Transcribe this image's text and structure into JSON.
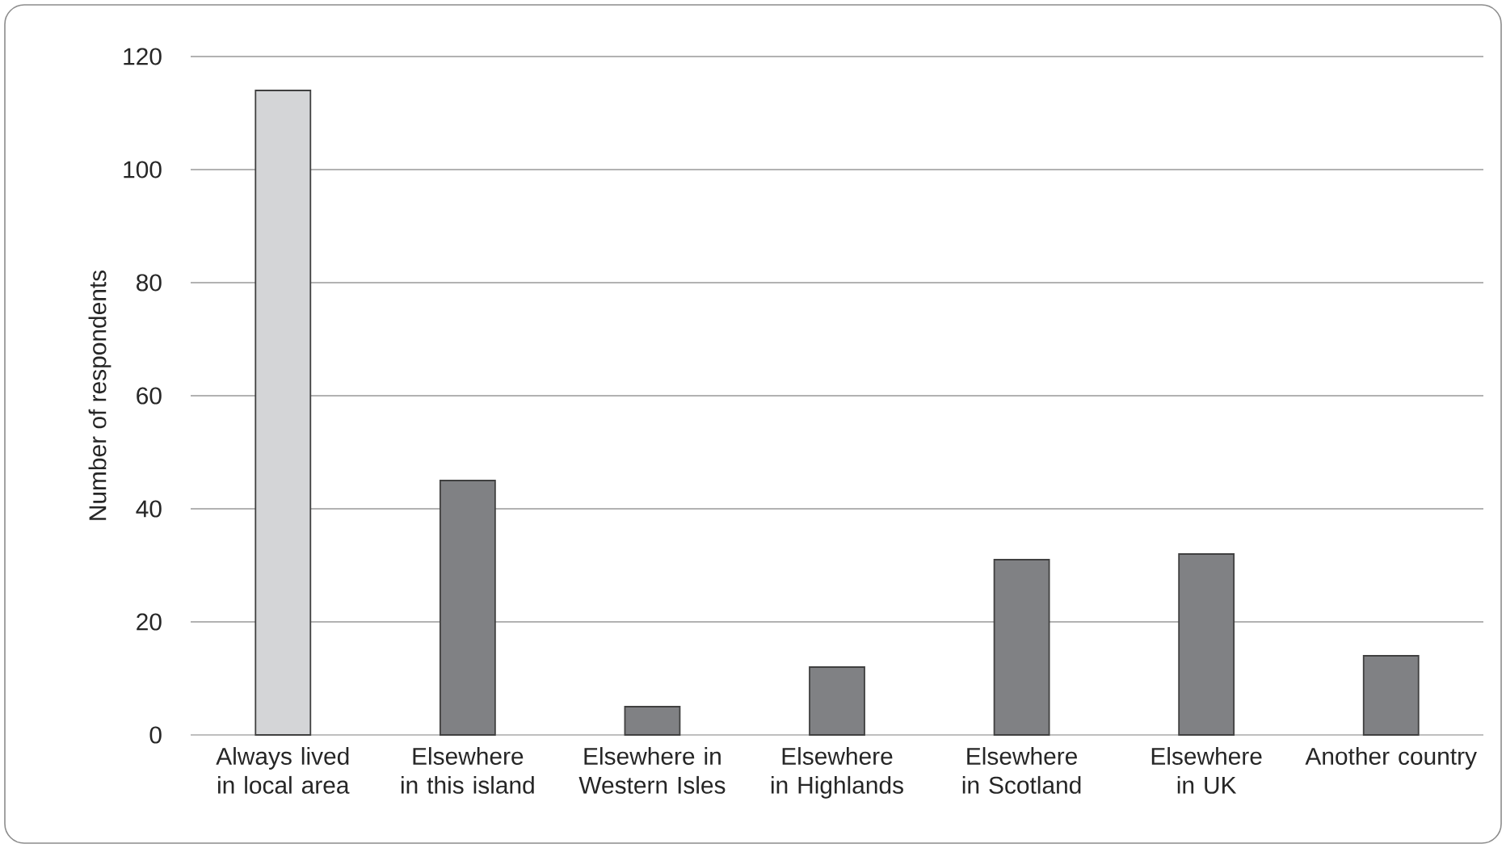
{
  "chart_data": {
    "type": "bar",
    "categories": [
      "Always lived in local area",
      "Elsewhere in this island",
      "Elsewhere in Western Isles",
      "Elsewhere in Highlands",
      "Elsewhere in Scotland",
      "Elsewhere in UK",
      "Another country"
    ],
    "values": [
      114,
      45,
      5,
      12,
      31,
      32,
      14
    ],
    "colors": [
      "#d4d5d7",
      "#808184",
      "#808184",
      "#808184",
      "#808184",
      "#808184",
      "#808184"
    ],
    "ylabel": "Number of respondents",
    "ylim": [
      0,
      120
    ],
    "yticks": [
      0,
      20,
      40,
      60,
      80,
      100,
      120
    ],
    "grid": "y"
  }
}
